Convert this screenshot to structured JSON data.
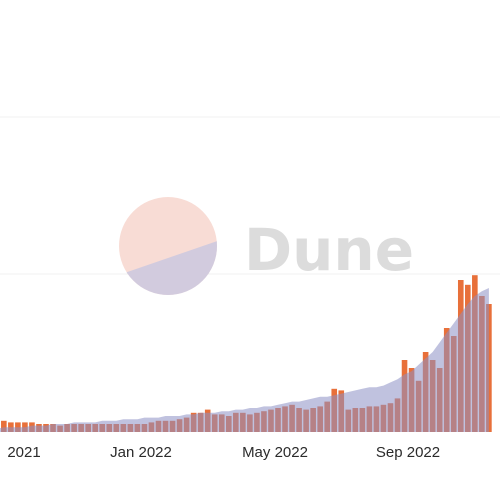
{
  "chart_data": {
    "type": "bar",
    "title": "",
    "xlabel": "",
    "ylabel": "",
    "grid": true,
    "legend": "none",
    "x_ticks": [
      "2021",
      "Jan 2022",
      "May 2022",
      "Sep 2022"
    ],
    "ylim": [
      0,
      200
    ],
    "bar_color": "#e8703a",
    "area_color": "#8c8fc4",
    "categories_desc": "weekly periods, late 2021 to Nov 2022",
    "values": [
      10,
      7,
      6,
      6,
      6,
      6,
      5,
      5,
      5,
      4,
      5,
      5,
      5,
      5,
      5,
      5,
      5,
      5,
      5,
      5,
      5,
      5,
      6,
      7,
      7,
      7,
      8,
      9,
      12,
      12,
      14,
      11,
      11,
      10,
      12,
      12,
      11,
      12,
      13,
      14,
      15,
      16,
      17,
      15,
      14,
      15,
      16,
      19,
      27,
      26,
      14,
      15,
      15,
      16,
      16,
      17,
      18,
      21,
      45,
      40,
      32,
      50,
      45,
      40,
      65,
      60,
      95,
      92,
      98,
      85,
      80
    ],
    "area_values": [
      2,
      3,
      3,
      3,
      3,
      4,
      4,
      4,
      5,
      5,
      5,
      6,
      6,
      6,
      6,
      7,
      7,
      7,
      8,
      8,
      8,
      9,
      9,
      9,
      10,
      10,
      10,
      11,
      11,
      12,
      12,
      12,
      13,
      13,
      14,
      14,
      15,
      15,
      16,
      16,
      17,
      18,
      19,
      19,
      20,
      21,
      22,
      22,
      23,
      24,
      25,
      26,
      27,
      28,
      28,
      29,
      31,
      33,
      36,
      38,
      42,
      46,
      50,
      56,
      62,
      68,
      74,
      80,
      85,
      88,
      90
    ]
  },
  "watermark": {
    "text": "Dune",
    "circle_top_color": "#f7d6ce",
    "circle_bottom_color": "#c5c6e0"
  }
}
